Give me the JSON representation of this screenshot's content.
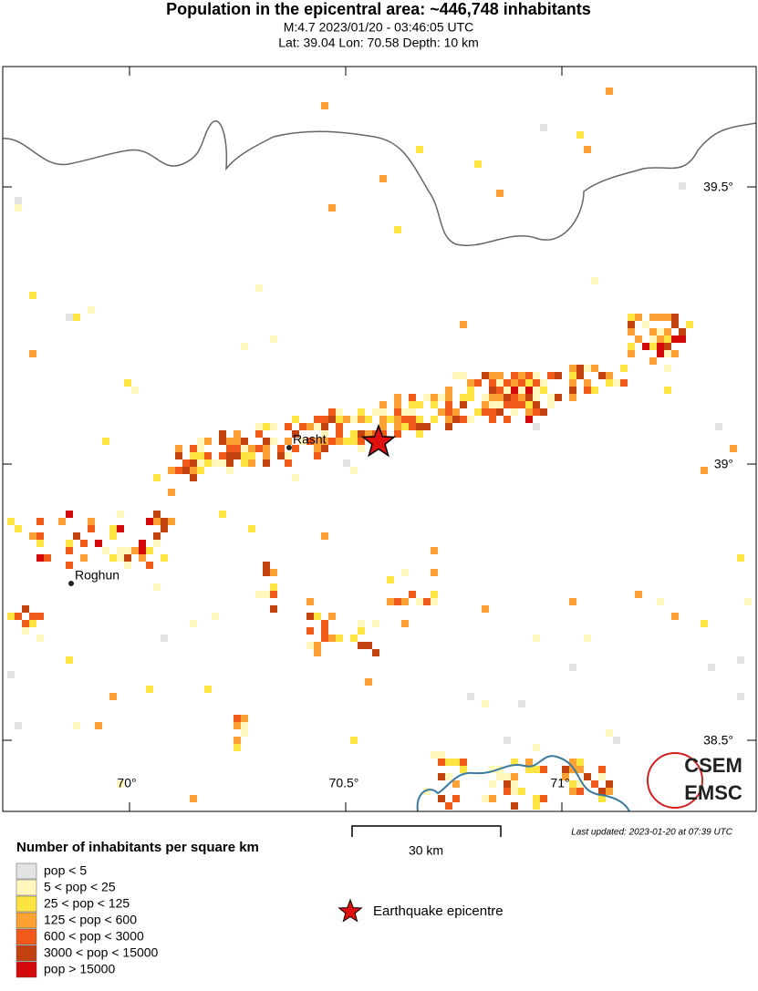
{
  "header": {
    "title": "Population in the epicentral area: ~446,748 inhabitants",
    "line1": "M:4.7 2023/01/20 - 03:46:05 UTC",
    "line2": "Lat: 39.04 Lon: 70.58 Depth: 10 km"
  },
  "map": {
    "lat_labels": [
      "39.5°",
      "39°",
      "38.5°"
    ],
    "lon_labels": [
      "70°",
      "70.5°",
      "71°"
    ],
    "cities": [
      "Rasht",
      "Roghun"
    ],
    "logo": [
      "CSEM",
      "EMSC"
    ]
  },
  "scale": "30 km",
  "updated": "Last updated: 2023-01-20 at 07:39 UTC",
  "legend": {
    "title": "Number of inhabitants per square km",
    "items": [
      {
        "label": "pop < 5",
        "color": "#e3e3e3"
      },
      {
        "label": "5 < pop < 25",
        "color": "#fff7bc"
      },
      {
        "label": "25 < pop < 125",
        "color": "#fee440"
      },
      {
        "label": "125 < pop < 600",
        "color": "#fca133"
      },
      {
        "label": "600 < pop < 3000",
        "color": "#f1591a"
      },
      {
        "label": "3000 < pop < 15000",
        "color": "#c2420f"
      },
      {
        "label": "pop > 15000",
        "color": "#d40a0a"
      }
    ],
    "epicentre": "Earthquake epicentre"
  }
}
